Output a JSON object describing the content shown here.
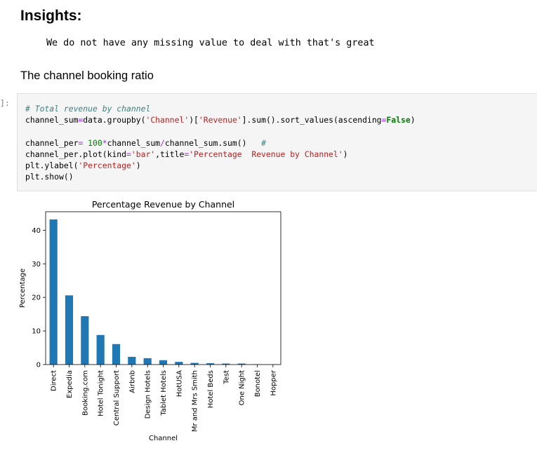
{
  "insights_heading": "Insights:",
  "insight_text": "We do not have any missing value to deal with that's great",
  "section_heading": "The channel booking ratio",
  "cell_prompt": "]:",
  "code": {
    "line1": "# Total revenue by channel",
    "line2": {
      "a": "channel_sum",
      "op1": "=",
      "b": "data",
      "c": ".groupby(",
      "s1": "'Channel'",
      "d": ")[",
      "s2": "'Revenue'",
      "e": "].sum().sort_values(ascending",
      "op2": "=",
      "kw": "False",
      "f": ")"
    },
    "line3": {
      "a": "channel_per",
      "op1": "=",
      "num": " 100",
      "op2": "*",
      "b": "channel_sum",
      "op3": "/",
      "c": "channel_sum.sum()",
      "com": "#"
    },
    "line4": {
      "a": "channel_per.plot(kind",
      "op": "=",
      "s1": "'bar'",
      "b": ",title",
      "op2": "=",
      "s2": "'Percentage  Revenue by Channel'",
      "c": ")"
    },
    "line5": {
      "a": "plt.ylabel(",
      "s": "'Percentage'",
      "b": ")"
    },
    "line6": {
      "a": "plt.show()"
    }
  },
  "chart_data": {
    "type": "bar",
    "title": "Percentage  Revenue by Channel",
    "xlabel": "Channel",
    "ylabel": "Percentage",
    "ylim": [
      0,
      45.5
    ],
    "yticks": [
      0,
      10,
      20,
      30,
      40
    ],
    "bar_color": "#1f77b4",
    "categories": [
      "Direct",
      "Expedia",
      "Booking.com",
      "Hotel Tonight",
      "Central Support",
      "Airbnb",
      "Design Hotels",
      "Tablet Hotels",
      "HotUSA",
      "Mr and Mrs Smith",
      "Hotel Beds",
      "Test",
      "One Night",
      "Bonotel",
      "Hopper"
    ],
    "values": [
      43.2,
      20.6,
      14.4,
      8.8,
      6.1,
      2.3,
      1.9,
      1.3,
      0.8,
      0.5,
      0.4,
      0.3,
      0.3,
      0.1,
      0.05
    ]
  }
}
